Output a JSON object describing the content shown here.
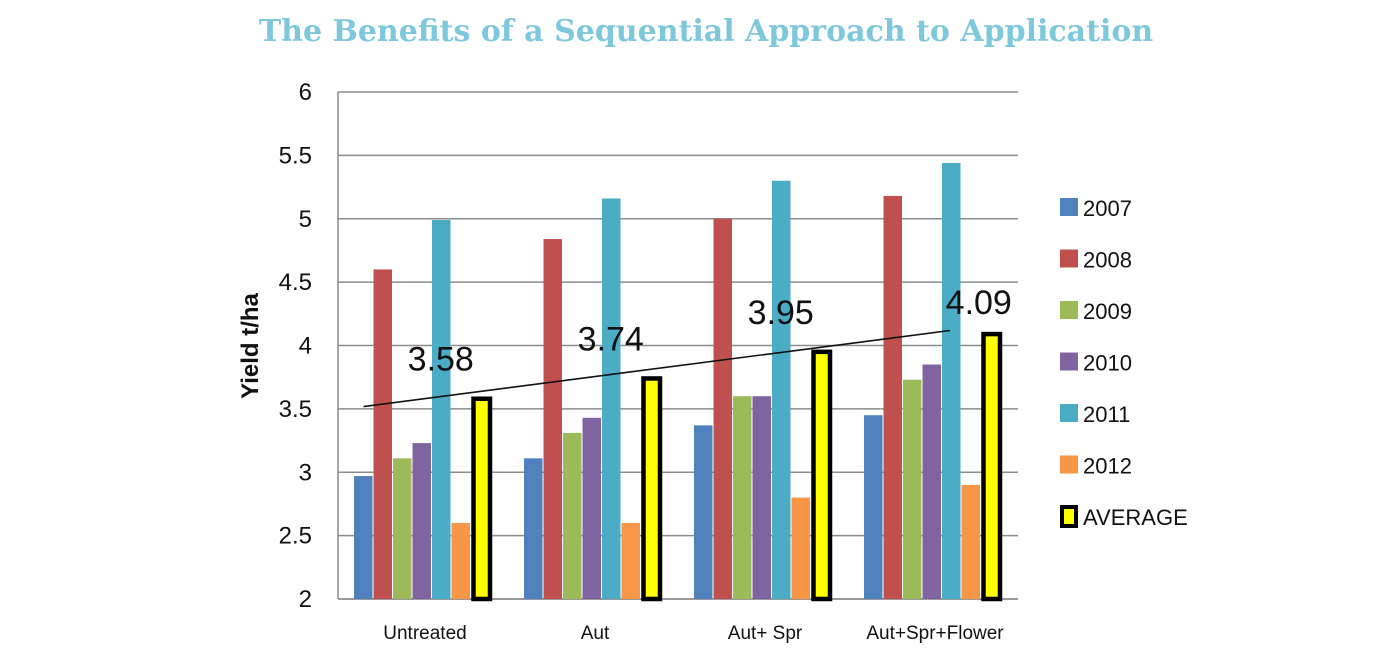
{
  "chart_data": {
    "type": "bar",
    "title": "The Benefits of a Sequential Approach to Application",
    "xlabel": "",
    "ylabel": "Yield t/ha",
    "ylim": [
      2,
      6
    ],
    "yticks": [
      "6",
      "5.5",
      "5",
      "4.5",
      "4",
      "3.5",
      "3",
      "2.5",
      "2"
    ],
    "grid": true,
    "legend_position": "right",
    "categories": [
      "Untreated",
      "Aut",
      "Aut+ Spr",
      "Aut+Spr+Flower"
    ],
    "series": [
      {
        "name": "2007",
        "color": "#4f81bd",
        "values": [
          2.97,
          3.11,
          3.37,
          3.45
        ]
      },
      {
        "name": "2008",
        "color": "#c0504d",
        "values": [
          4.6,
          4.84,
          5.0,
          5.18
        ]
      },
      {
        "name": "2009",
        "color": "#9bbb59",
        "values": [
          3.11,
          3.31,
          3.6,
          3.73
        ]
      },
      {
        "name": "2010",
        "color": "#8064a2",
        "values": [
          3.23,
          3.43,
          3.6,
          3.85
        ]
      },
      {
        "name": "2011",
        "color": "#4bacc6",
        "values": [
          4.99,
          5.16,
          5.3,
          5.44
        ]
      },
      {
        "name": "2012",
        "color": "#f79646",
        "values": [
          2.6,
          2.6,
          2.8,
          2.9
        ]
      },
      {
        "name": "AVERAGE",
        "color": "#ffff00",
        "border": "#000000",
        "values": [
          3.58,
          3.74,
          3.95,
          4.09
        ]
      }
    ],
    "average_labels": [
      "3.58",
      "3.74",
      "3.95",
      "4.09"
    ],
    "trendline": true
  }
}
